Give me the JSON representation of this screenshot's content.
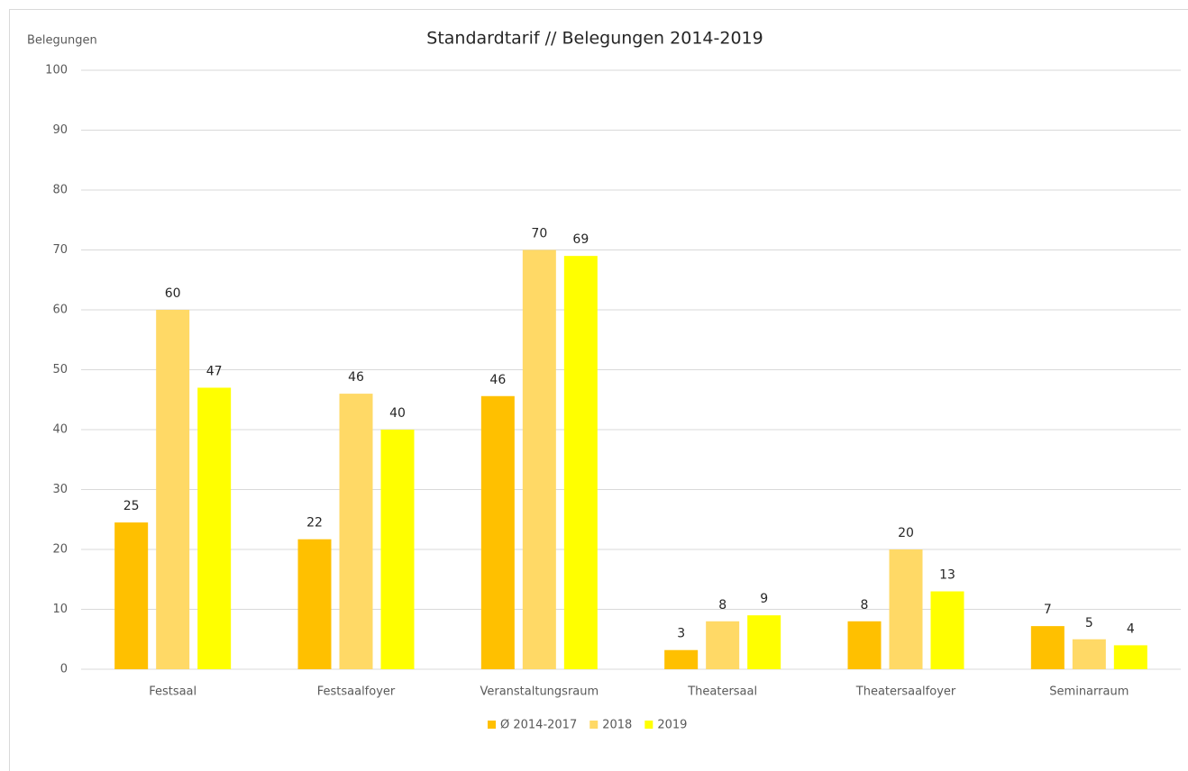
{
  "chart_data": {
    "type": "bar",
    "title": "Standardtarif // Belegungen 2014-2019",
    "y_label": "Belegungen",
    "categories": [
      "Festsaal",
      "Festsaalfoyer",
      "Veranstaltungsraum",
      "Theatersaal",
      "Theatersaalfoyer",
      "Seminarraum"
    ],
    "series": [
      {
        "name": "Ø 2014-2017",
        "color": "#ffc000",
        "values": [
          24.5,
          21.7,
          45.6,
          3.2,
          8,
          7.2
        ],
        "value_labels": [
          "25",
          "22",
          "46",
          "3",
          "8",
          "7"
        ]
      },
      {
        "name": "2018",
        "color": "#ffd966",
        "values": [
          60,
          46,
          70,
          8,
          20,
          5
        ]
      },
      {
        "name": "2019",
        "color": "#ffff00",
        "values": [
          47,
          40,
          69,
          9,
          13,
          4
        ]
      }
    ],
    "ylim": [
      0,
      100
    ],
    "yticks": [
      0,
      10,
      20,
      30,
      40,
      50,
      60,
      70,
      80,
      90,
      100
    ],
    "grid": true,
    "legend": "bottom"
  }
}
